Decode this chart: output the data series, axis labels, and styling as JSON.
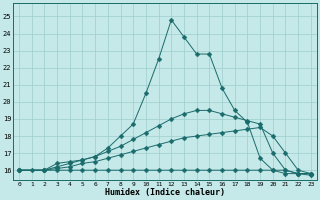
{
  "xlabel": "Humidex (Indice chaleur)",
  "xlim": [
    -0.5,
    23.5
  ],
  "ylim": [
    15.4,
    25.8
  ],
  "yticks": [
    16,
    17,
    18,
    19,
    20,
    21,
    22,
    23,
    24,
    25
  ],
  "xticks": [
    0,
    1,
    2,
    3,
    4,
    5,
    6,
    7,
    8,
    9,
    10,
    11,
    12,
    13,
    14,
    15,
    16,
    17,
    18,
    19,
    20,
    21,
    22,
    23
  ],
  "bg_color": "#c5e8e8",
  "line_color": "#1a6b6b",
  "grid_color": "#9ecece",
  "line1_x": [
    0,
    1,
    2,
    3,
    4,
    5,
    6,
    7,
    8,
    9,
    10,
    11,
    12,
    13,
    14,
    15,
    16,
    17,
    18,
    19,
    20,
    21,
    22,
    23
  ],
  "line1_y": [
    16.0,
    16.0,
    16.0,
    16.0,
    16.0,
    16.0,
    16.0,
    16.0,
    16.0,
    16.0,
    16.0,
    16.0,
    16.0,
    16.0,
    16.0,
    16.0,
    16.0,
    16.0,
    16.0,
    16.0,
    16.0,
    16.0,
    15.8,
    15.7
  ],
  "line2_x": [
    0,
    2,
    3,
    4,
    5,
    6,
    7,
    8,
    9,
    10,
    11,
    12,
    13,
    14,
    15,
    16,
    17,
    18,
    19,
    20,
    21,
    22,
    23
  ],
  "line2_y": [
    16.0,
    16.0,
    16.1,
    16.2,
    16.4,
    16.5,
    16.7,
    16.9,
    17.1,
    17.3,
    17.5,
    17.7,
    17.9,
    18.0,
    18.1,
    18.2,
    18.3,
    18.4,
    18.5,
    18.0,
    17.0,
    16.0,
    15.8
  ],
  "line3_x": [
    0,
    2,
    3,
    4,
    5,
    6,
    7,
    8,
    9,
    10,
    11,
    12,
    13,
    14,
    15,
    16,
    17,
    18,
    19,
    20,
    21,
    22,
    23
  ],
  "line3_y": [
    16.0,
    16.0,
    16.2,
    16.4,
    16.6,
    16.8,
    17.1,
    17.4,
    17.8,
    18.2,
    18.6,
    19.0,
    19.3,
    19.5,
    19.5,
    19.3,
    19.1,
    18.9,
    18.7,
    17.0,
    16.0,
    15.8,
    15.8
  ],
  "line4_x": [
    0,
    2,
    3,
    4,
    5,
    6,
    7,
    8,
    9,
    10,
    11,
    12,
    13,
    14,
    15,
    16,
    17,
    18,
    19,
    20,
    21,
    22,
    23
  ],
  "line4_y": [
    16.0,
    16.0,
    16.4,
    16.5,
    16.6,
    16.8,
    17.3,
    18.0,
    18.7,
    20.5,
    22.5,
    24.8,
    23.8,
    22.8,
    22.8,
    20.8,
    19.5,
    18.8,
    16.7,
    16.0,
    15.8,
    15.8,
    15.8
  ]
}
